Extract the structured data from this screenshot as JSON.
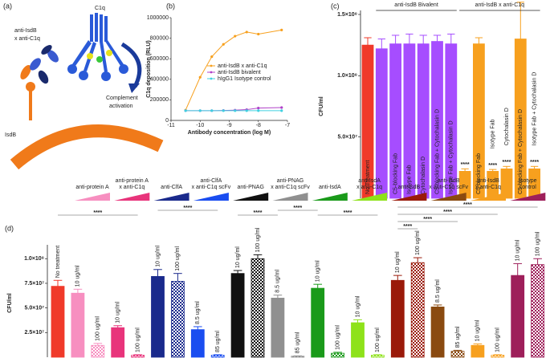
{
  "diagram": {
    "panel_label": "(a)",
    "labels": {
      "bispecific": [
        "anti-IsdB",
        "x anti-C1q"
      ],
      "c1q": "C1q",
      "isdb": "IsdB",
      "activation": [
        "Complement",
        "activation"
      ]
    }
  },
  "chart_data": [
    {
      "type": "line",
      "panel_label": "(b)",
      "x_label": "Antibody concentration (log M)",
      "y_label": "C1q deposition (RLU)",
      "x": [
        -10.5,
        -10,
        -9.6,
        -9.2,
        -8.8,
        -8.4,
        -8.0,
        -7.2
      ],
      "xlim": [
        -11,
        -7
      ],
      "xticks": [
        -11,
        -10,
        -9,
        -8,
        -7
      ],
      "ylim": [
        0,
        1000000
      ],
      "yticks": [
        0,
        200000,
        400000,
        600000,
        800000,
        1000000
      ],
      "legend": "right",
      "series": [
        {
          "name": "anti-IsdB x anti-C1q",
          "color": "#f7a01e",
          "values": [
            100000,
            420000,
            620000,
            740000,
            820000,
            860000,
            840000,
            880000
          ]
        },
        {
          "name": "anti-IsdB bivalent",
          "color": "#b040c8",
          "values": [
            95000,
            95000,
            95000,
            97000,
            100000,
            105000,
            120000,
            125000
          ]
        },
        {
          "name": "hIgG1 Isotype control",
          "color": "#40d0e0",
          "values": [
            95000,
            95000,
            95000,
            95000,
            95000,
            95000,
            95000,
            95000
          ]
        }
      ]
    },
    {
      "type": "bar",
      "panel_label": "(c)",
      "y_label": "CFU/ml",
      "categories": [
        "No Treatment",
        null,
        "C5-blocking Fab",
        "Isotype Fab",
        "Cytochalasin D",
        "C5-blocking Fab + Cytochalasin D",
        "Isotype Fab + Cytochalasin D",
        null,
        "C5-blocking Fab",
        "Isotype Fab",
        "Cytochalasin D",
        "C5-blocking Fab + Cytochalasin D",
        "Isotype Fab + Cytochalasin D"
      ],
      "values": [
        125000000,
        122000000,
        126000000,
        126000000,
        126000000,
        128000000,
        126000000,
        22000000,
        126000000,
        22000000,
        24000000,
        130000000,
        24000000
      ],
      "errors": [
        6000000,
        8000000,
        7000000,
        8000000,
        7000000,
        5000000,
        8000000,
        2000000,
        5000000,
        1500000,
        2000000,
        30000000,
        2000000
      ],
      "colors": [
        "#f03a2a",
        "#a64dff",
        "#a64dff",
        "#a64dff",
        "#a64dff",
        "#a64dff",
        "#a64dff",
        "#f7a01e",
        "#f7a01e",
        "#f7a01e",
        "#f7a01e",
        "#f7a01e",
        "#f7a01e"
      ],
      "groups": [
        "anti-IsdB Bivalent",
        "anti-IsdB x anti-C1q"
      ],
      "significance_labels": [
        "****",
        "****",
        "****",
        "****"
      ],
      "ylim": [
        0,
        150000000
      ],
      "yticks": [
        {
          "value": 50000000,
          "label": "5.0×10⁷"
        },
        {
          "value": 100000000,
          "label": "1.0×10⁸"
        },
        {
          "value": 150000000,
          "label": "1.5×10⁸"
        }
      ]
    },
    {
      "type": "bar",
      "panel_label": "(d)",
      "y_label": "CFU/ml",
      "values": [
        72000000,
        65000000,
        12000000,
        30000000,
        2000000,
        82000000,
        77000000,
        28000000,
        2000000,
        85000000,
        100000000,
        60000000,
        1000000,
        70000000,
        4000000,
        35000000,
        2000000,
        78000000,
        96000000,
        51000000,
        6000000,
        12000000,
        2000000,
        83000000,
        94000000
      ],
      "errors": [
        6000000,
        4000000,
        2000000,
        2000000,
        500000,
        7000000,
        8000000,
        3000000,
        500000,
        3000000,
        4000000,
        3000000,
        300000,
        4000000,
        1000000,
        3000000,
        500000,
        5000000,
        5000000,
        2000000,
        1000000,
        1500000,
        500000,
        12000000,
        6000000
      ],
      "colors": [
        "#f03a2a",
        "#f78fc0",
        "#f78fc0",
        "#e8347b",
        "#e8347b",
        "#1a2a8c",
        "#1a2a8c",
        "#1a4df0",
        "#1a4df0",
        "#111111",
        "#111111",
        "#909090",
        "#909090",
        "#1a9a1a",
        "#1a9a1a",
        "#8ee21a",
        "#8ee21a",
        "#9a1a0a",
        "#9a1a0a",
        "#8a4a10",
        "#8a4a10",
        "#f7a01e",
        "#f7a01e",
        "#9e1f5a",
        "#9e1f5a"
      ],
      "checkered": [
        false,
        false,
        true,
        false,
        true,
        false,
        true,
        false,
        true,
        false,
        true,
        false,
        true,
        false,
        true,
        false,
        true,
        false,
        true,
        false,
        true,
        false,
        true,
        false,
        true
      ],
      "bar_labels": [
        "No treatment",
        "10 ug/ml",
        "100 ug/ml",
        "10 ug/ml",
        "100 ug/ml",
        "10 ug/ml",
        "100 ug/ml",
        "8.5 ug/ml",
        "85 ug/ml",
        "10 ug/ml",
        "100 ug/ml",
        "8.5 ug/ml",
        "85 ug/ml",
        "10 ug/ml",
        "100 ug/ml",
        "10 ug/ml",
        "100 ug/ml",
        "10 ug/ml",
        "100 ug/ml",
        "8.5 ug/ml",
        "85 ug/ml",
        "10 ug/ml",
        "100 ug/ml",
        "10 ug/ml",
        "100 ug/ml"
      ],
      "legend": [
        {
          "lines": [
            "anti-protein A"
          ],
          "color": "#f78fc0"
        },
        {
          "lines": [
            "anti-protein A",
            "x anti-C1q"
          ],
          "color": "#e8347b"
        },
        {
          "lines": [
            "anti-ClfA"
          ],
          "color": "#1a2a8c"
        },
        {
          "lines": [
            "anti-ClfA",
            "x anti-C1q scFv"
          ],
          "color": "#1a4df0"
        },
        {
          "lines": [
            "anti-PNAG"
          ],
          "color": "#111111"
        },
        {
          "lines": [
            "anti-PNAG",
            "x anti-C1q scFv"
          ],
          "color": "#909090"
        },
        {
          "lines": [
            "anti-IsdA"
          ],
          "color": "#1a9a1a"
        },
        {
          "lines": [
            "anti-IsdA",
            "x anti-C1q"
          ],
          "color": "#8ee21a"
        },
        {
          "lines": [
            "anti-IsdB"
          ],
          "color": "#9a1a0a"
        },
        {
          "lines": [
            "anti-IsdB",
            "x anti-C1q scFv"
          ],
          "color": "#8a4a10"
        },
        {
          "lines": [
            "anti-IsdB",
            "x anti-C1q"
          ],
          "color": "#f7a01e"
        },
        {
          "lines": [
            "Isotype",
            "control"
          ],
          "color": "#9e1f5a"
        }
      ],
      "significance_labels": [
        "****",
        "****",
        "****",
        "****",
        "****",
        "****",
        "****",
        "****",
        "****"
      ],
      "ylim": [
        0,
        110000000
      ],
      "yticks": [
        {
          "value": 25000000,
          "label": "2.5×10⁷"
        },
        {
          "value": 50000000,
          "label": "5.0×10⁷"
        },
        {
          "value": 75000000,
          "label": "7.5×10⁷"
        },
        {
          "value": 100000000,
          "label": "1.0×10⁸"
        }
      ]
    }
  ]
}
